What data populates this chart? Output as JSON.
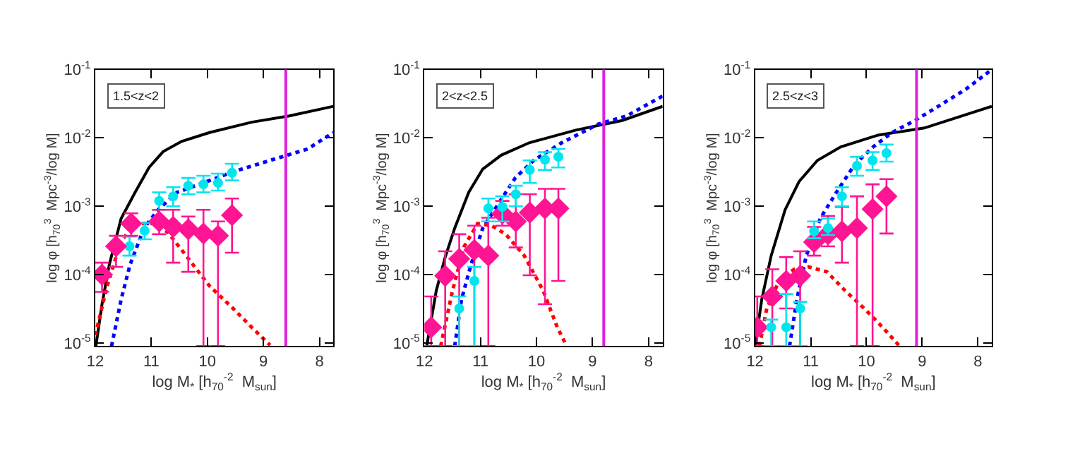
{
  "chart_data": [
    {
      "type": "line",
      "xlabel": "log M$_{*}$ [h$_{70}$$^{-2}$  M$_{sun}$]",
      "ylabel": "log φ [h$_{70}$$^{3}$  Mpc$^{-3}$/log M]",
      "annotations": [
        "1.5<z<2"
      ],
      "log": true,
      "xlim": [
        12,
        7.75
      ],
      "xticks": [
        12,
        11,
        10,
        9,
        8
      ],
      "ylim": [
        9e-06,
        0.1
      ],
      "yticks": [
        {
          "value": 1e-05,
          "label": "10$^{-5}$"
        },
        {
          "value": 0.0001,
          "label": "10$^{-4}$"
        },
        {
          "value": 0.001,
          "label": "10$^{-3}$"
        },
        {
          "value": 0.01,
          "label": "10$^{-2}$"
        },
        {
          "value": 0.1,
          "label": "10$^{-1}$"
        }
      ],
      "ref_lines": [
        {
          "axis": "x",
          "value": 8.6,
          "color": "#e020e0"
        }
      ],
      "series": [
        {
          "color": "#000000",
          "line_style": "solid",
          "x": [
            11.99,
            11.88,
            11.75,
            11.54,
            11.29,
            11.04,
            10.79,
            10.46,
            9.96,
            9.21,
            8.54,
            7.75
          ],
          "values": [
            9e-06,
            3.7e-05,
            0.00014,
            0.00066,
            0.0016,
            0.0037,
            0.0063,
            0.0089,
            0.012,
            0.017,
            0.021,
            0.029
          ]
        },
        {
          "color": "#0000ff",
          "line_style": "dotted",
          "x": [
            11.71,
            11.54,
            11.38,
            11.13,
            10.88,
            10.54,
            10.21,
            9.54,
            8.88,
            8.21,
            7.75
          ],
          "values": [
            9e-06,
            4.3e-05,
            0.00014,
            0.00048,
            0.00089,
            0.0016,
            0.002,
            0.0032,
            0.0047,
            0.0069,
            0.012
          ]
        },
        {
          "color": "#ff0000",
          "line_style": "dotted",
          "x": [
            12.0,
            11.79,
            11.54,
            11.29,
            10.96,
            10.71,
            10.38,
            9.96,
            9.54,
            9.21,
            8.88
          ],
          "values": [
            1.3e-05,
            6.8e-05,
            0.00031,
            0.00056,
            0.00056,
            0.00042,
            0.00019,
            6.8e-05,
            3.2e-05,
            1.7e-05,
            9.3e-06
          ]
        },
        {
          "type": "scatter",
          "color": "#00e5ee",
          "marker": "circle",
          "x": [
            11.39,
            11.12,
            10.86,
            10.61,
            10.34,
            10.07,
            9.81,
            9.56
          ],
          "values": [
            0.00026,
            0.00044,
            0.0012,
            0.0014,
            0.002,
            0.0021,
            0.0022,
            0.0031
          ],
          "errors": [
            [
              0.00019,
              0.00036
            ],
            [
              0.00033,
              0.00057
            ],
            [
              0.00089,
              0.0016
            ],
            [
              0.001,
              0.0019
            ],
            [
              0.0015,
              0.0026
            ],
            [
              0.0016,
              0.0028
            ],
            [
              0.0017,
              0.003
            ],
            [
              0.0024,
              0.0042
            ]
          ]
        },
        {
          "type": "scatter",
          "color": "#ff1493",
          "marker": "diamond",
          "x": [
            11.88,
            11.63,
            11.36,
            10.86,
            10.61,
            10.34,
            10.07,
            9.81,
            9.56
          ],
          "values": [
            0.0001,
            0.00026,
            0.00056,
            0.0006,
            0.0005,
            0.00046,
            0.0004,
            0.00037,
            0.00074
          ],
          "errors": [
            [
              5.6e-05,
              0.00015
            ],
            [
              0.00013,
              0.00037
            ],
            [
              0.00037,
              0.00079
            ],
            [
              0.00039,
              0.00089
            ],
            [
              0.00015,
              0.00089
            ],
            [
              0.00011,
              0.00071
            ],
            [
              9e-06,
              0.00089
            ],
            [
              9e-06,
              0.0006
            ],
            [
              0.00021,
              0.0013
            ]
          ]
        }
      ]
    },
    {
      "type": "line",
      "xlabel": "log M$_{*}$ [h$_{70}$$^{-2}$  M$_{sun}$]",
      "ylabel": "log φ [h$_{70}$$^{3}$  Mpc$^{-3}$/log M]",
      "annotations": [
        "2<z<2.5"
      ],
      "log": true,
      "xlim": [
        12,
        7.75
      ],
      "xticks": [
        12,
        11,
        10,
        9,
        8
      ],
      "ylim": [
        9e-06,
        0.1
      ],
      "yticks": [
        {
          "value": 1e-05,
          "label": "10$^{-5}$"
        },
        {
          "value": 0.0001,
          "label": "10$^{-4}$"
        },
        {
          "value": 0.001,
          "label": "10$^{-3}$"
        },
        {
          "value": 0.01,
          "label": "10$^{-2}$"
        },
        {
          "value": 0.1,
          "label": "10$^{-1}$"
        }
      ],
      "ref_lines": [
        {
          "axis": "x",
          "value": 8.8,
          "color": "#e020e0"
        }
      ],
      "series": [
        {
          "color": "#000000",
          "line_style": "solid",
          "x": [
            11.96,
            11.79,
            11.63,
            11.46,
            11.21,
            10.96,
            10.63,
            10.13,
            9.3,
            8.47,
            7.75
          ],
          "values": [
            9e-06,
            5.8e-05,
            0.00018,
            0.00048,
            0.0016,
            0.0035,
            0.0056,
            0.0085,
            0.013,
            0.018,
            0.029
          ]
        },
        {
          "color": "#0000ff",
          "line_style": "dotted",
          "x": [
            11.46,
            11.34,
            11.17,
            10.96,
            10.71,
            10.38,
            10.05,
            9.55,
            8.89,
            8.39,
            7.75
          ],
          "values": [
            9e-06,
            4.3e-05,
            0.00014,
            0.00048,
            0.001,
            0.0026,
            0.0047,
            0.0085,
            0.016,
            0.021,
            0.041
          ]
        },
        {
          "color": "#ff0000",
          "line_style": "dotted",
          "x": [
            11.71,
            11.5,
            11.29,
            11.05,
            10.8,
            10.55,
            10.22,
            9.88,
            9.63,
            9.47
          ],
          "values": [
            9e-06,
            5.8e-05,
            0.00026,
            0.00056,
            0.00052,
            0.00039,
            0.00019,
            5.8e-05,
            1.7e-05,
            9.3e-06
          ]
        },
        {
          "type": "scatter",
          "color": "#ff1493",
          "marker": "diamond",
          "x": [
            11.88,
            11.63,
            11.38,
            11.11,
            10.86,
            10.61,
            10.37,
            10.12,
            9.85,
            9.61
          ],
          "values": [
            1.7e-05,
            9.6e-05,
            0.00017,
            0.00023,
            0.00019,
            0.00078,
            0.0006,
            0.00081,
            0.00093,
            0.00093
          ],
          "errors": [
            [
              9e-06,
              4.8e-05
            ],
            [
              9e-06,
              0.00022
            ],
            [
              9e-06,
              0.00039
            ],
            [
              9e-06,
              0.00052
            ],
            [
              9e-06,
              0.00068
            ],
            [
              0.00052,
              0.0012
            ],
            [
              0.00025,
              0.0015
            ],
            [
              9.8e-05,
              0.0015
            ],
            [
              3.7e-05,
              0.0018
            ],
            [
              8.1e-05,
              0.0018
            ]
          ]
        },
        {
          "type": "scatter",
          "color": "#00e5ee",
          "marker": "circle",
          "x": [
            11.38,
            11.11,
            10.86,
            10.61,
            10.37,
            10.12,
            9.85,
            9.61
          ],
          "values": [
            3.2e-05,
            8.1e-05,
            0.00093,
            0.00098,
            0.0015,
            0.0034,
            0.0048,
            0.0053
          ],
          "errors": [
            [
              9e-06,
              4.8e-05
            ],
            [
              9e-06,
              0.00013
            ],
            [
              0.0006,
              0.0013
            ],
            [
              0.0006,
              0.0014
            ],
            [
              0.001,
              0.002
            ],
            [
              0.0022,
              0.0047
            ],
            [
              0.0034,
              0.0062
            ],
            [
              0.0037,
              0.0069
            ]
          ]
        }
      ]
    },
    {
      "type": "line",
      "xlabel": "log M$_{*}$ [h$_{70}$$^{-2}$  M$_{sun}$]",
      "ylabel": "log φ [h$_{70}$$^{3}$  Mpc$^{-3}$/log M]",
      "annotations": [
        "2.5<z<3"
      ],
      "log": true,
      "xlim": [
        12,
        7.75
      ],
      "xticks": [
        12,
        11,
        10,
        9,
        8
      ],
      "ylim": [
        9e-06,
        0.1
      ],
      "yticks": [
        {
          "value": 1e-05,
          "label": "10$^{-5}$"
        },
        {
          "value": 0.0001,
          "label": "10$^{-4}$"
        },
        {
          "value": 0.001,
          "label": "10$^{-3}$"
        },
        {
          "value": 0.01,
          "label": "10$^{-2}$"
        },
        {
          "value": 0.1,
          "label": "10$^{-1}$"
        }
      ],
      "ref_lines": [
        {
          "axis": "x",
          "value": 9.1,
          "color": "#e020e0"
        }
      ],
      "series": [
        {
          "color": "#000000",
          "line_style": "solid",
          "x": [
            12.0,
            11.88,
            11.71,
            11.46,
            11.21,
            10.88,
            10.46,
            9.79,
            8.96,
            7.75
          ],
          "values": [
            9e-06,
            4.3e-05,
            0.00019,
            0.00089,
            0.0023,
            0.0047,
            0.0074,
            0.011,
            0.014,
            0.029
          ]
        },
        {
          "color": "#0000ff",
          "line_style": "dotted",
          "x": [
            11.38,
            11.25,
            11.08,
            10.83,
            10.54,
            10.21,
            9.88,
            9.54,
            9.13,
            8.71,
            8.21,
            7.75
          ],
          "values": [
            9e-06,
            4.3e-05,
            0.00019,
            0.00066,
            0.0016,
            0.0041,
            0.0074,
            0.012,
            0.018,
            0.029,
            0.052,
            0.1
          ]
        },
        {
          "color": "#ff0000",
          "line_style": "dotted",
          "x": [
            11.92,
            11.79,
            11.54,
            11.29,
            11.04,
            10.71,
            10.38,
            10.04,
            9.71,
            9.42
          ],
          "values": [
            9e-06,
            3.2e-05,
            9.1e-05,
            0.00012,
            0.00013,
            0.00011,
            5.8e-05,
            3.2e-05,
            1.7e-05,
            9.3e-06
          ]
        },
        {
          "type": "scatter",
          "color": "#ff1493",
          "marker": "diamond",
          "x": [
            11.96,
            11.69,
            11.44,
            11.19,
            10.94,
            10.69,
            10.44,
            10.17,
            9.89,
            9.64
          ],
          "values": [
            1.7e-05,
            4.8e-05,
            8.1e-05,
            9.6e-05,
            0.0003,
            0.00039,
            0.00043,
            0.00048,
            0.00091,
            0.0014
          ],
          "errors": [
            [
              9e-06,
              4.8e-05
            ],
            [
              9e-06,
              0.00012
            ],
            [
              3.2e-05,
              0.00018
            ],
            [
              9e-06,
              0.00022
            ],
            [
              0.00019,
              0.0005
            ],
            [
              0.00026,
              0.00072
            ],
            [
              0.00015,
              0.00098
            ],
            [
              9e-06,
              0.0014
            ],
            [
              9e-06,
              0.0021
            ],
            [
              0.0004,
              0.0025
            ]
          ]
        },
        {
          "type": "scatter",
          "color": "#00e5ee",
          "marker": "circle",
          "x": [
            11.71,
            11.44,
            11.19,
            10.94,
            10.69,
            10.44,
            10.17,
            9.89,
            9.64
          ],
          "values": [
            1.7e-05,
            1.7e-05,
            3.2e-05,
            0.00043,
            0.00048,
            0.0014,
            0.0039,
            0.0047,
            0.006
          ],
          "errors": [
            [
              9e-06,
              2.2e-05
            ],
            [
              9e-06,
              5.2e-05
            ],
            [
              9e-06,
              4e-05
            ],
            [
              0.00034,
              0.0006
            ],
            [
              0.00038,
              0.00066
            ],
            [
              0.001,
              0.0019
            ],
            [
              0.0028,
              0.0053
            ],
            [
              0.0034,
              0.0062
            ],
            [
              0.0045,
              0.008
            ]
          ]
        }
      ]
    }
  ]
}
